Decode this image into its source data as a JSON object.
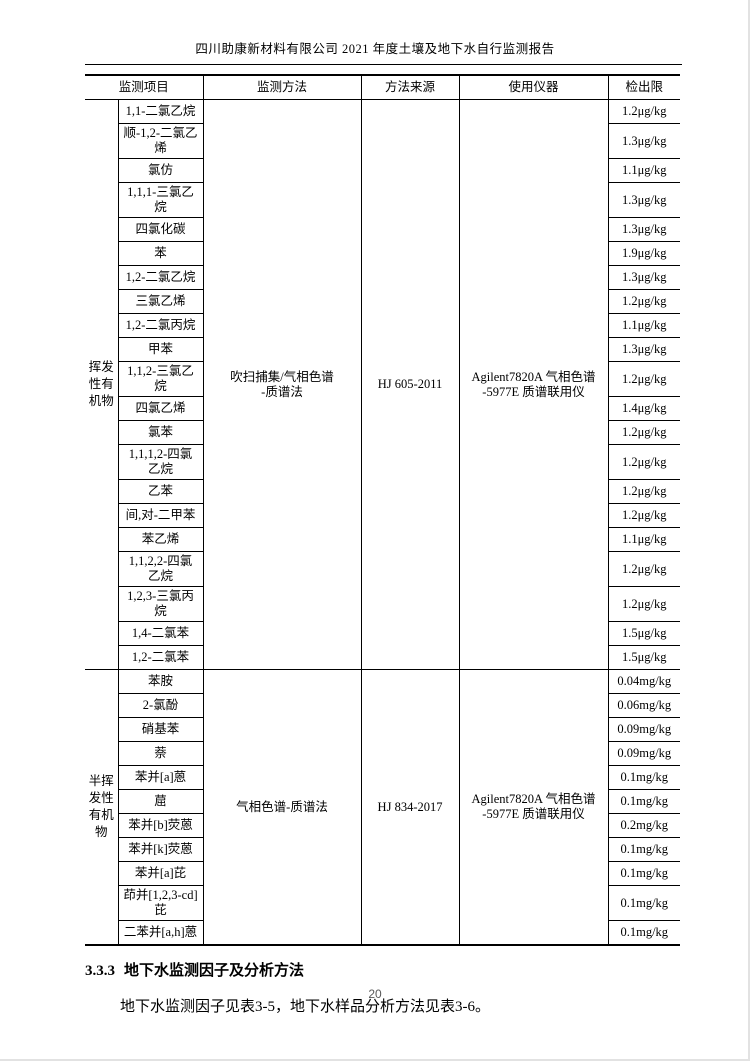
{
  "header": {
    "title": "四川助康新材料有限公司 2021 年度土壤及地下水自行监测报告"
  },
  "colors": {
    "text": "#000000",
    "table_lines": "#000000",
    "page_number": "#595959"
  },
  "table": {
    "headers": {
      "item": "监测项目",
      "method": "监测方法",
      "source": "方法来源",
      "instrument": "使用仪器",
      "limit": "检出限"
    },
    "groups": [
      {
        "category": "挥发\n性有\n机物",
        "category_full": "挥发性有机物",
        "method": "吹扫捕集/气相色谱\n-质谱法",
        "source": "HJ 605-2011",
        "instrument": "Agilent7820A 气相色谱\n-5977E 质谱联用仪",
        "rows": [
          {
            "item": "1,1-二氯乙烷",
            "limit": "1.2μg/kg"
          },
          {
            "item": "顺-1,2-二氯乙\n烯",
            "limit": "1.3μg/kg"
          },
          {
            "item": "氯仿",
            "limit": "1.1μg/kg"
          },
          {
            "item": "1,1,1-三氯乙\n烷",
            "limit": "1.3μg/kg"
          },
          {
            "item": "四氯化碳",
            "limit": "1.3μg/kg"
          },
          {
            "item": "苯",
            "limit": "1.9μg/kg"
          },
          {
            "item": "1,2-二氯乙烷",
            "limit": "1.3μg/kg"
          },
          {
            "item": "三氯乙烯",
            "limit": "1.2μg/kg"
          },
          {
            "item": "1,2-二氯丙烷",
            "limit": "1.1μg/kg"
          },
          {
            "item": "甲苯",
            "limit": "1.3μg/kg"
          },
          {
            "item": "1,1,2-三氯乙\n烷",
            "limit": "1.2μg/kg"
          },
          {
            "item": "四氯乙烯",
            "limit": "1.4μg/kg"
          },
          {
            "item": "氯苯",
            "limit": "1.2μg/kg"
          },
          {
            "item": "1,1,1,2-四氯\n乙烷",
            "limit": "1.2μg/kg"
          },
          {
            "item": "乙苯",
            "limit": "1.2μg/kg"
          },
          {
            "item": "间,对-二甲苯",
            "limit": "1.2μg/kg"
          },
          {
            "item": "苯乙烯",
            "limit": "1.1μg/kg"
          },
          {
            "item": "1,1,2,2-四氯\n乙烷",
            "limit": "1.2μg/kg"
          },
          {
            "item": "1,2,3-三氯丙\n烷",
            "limit": "1.2μg/kg"
          },
          {
            "item": "1,4-二氯苯",
            "limit": "1.5μg/kg"
          },
          {
            "item": "1,2-二氯苯",
            "limit": "1.5μg/kg"
          }
        ]
      },
      {
        "category": "半挥\n发性\n有机\n物",
        "category_full": "半挥发性有机物",
        "method": "气相色谱-质谱法",
        "source": "HJ 834-2017",
        "instrument": "Agilent7820A 气相色谱\n-5977E 质谱联用仪",
        "rows": [
          {
            "item": "苯胺",
            "limit": "0.04mg/kg"
          },
          {
            "item": "2-氯酚",
            "limit": "0.06mg/kg"
          },
          {
            "item": "硝基苯",
            "limit": "0.09mg/kg"
          },
          {
            "item": "萘",
            "limit": "0.09mg/kg"
          },
          {
            "item": "苯并[a]蒽",
            "limit": "0.1mg/kg"
          },
          {
            "item": "䓛",
            "limit": "0.1mg/kg"
          },
          {
            "item": "苯并[b]荧蒽",
            "limit": "0.2mg/kg"
          },
          {
            "item": "苯并[k]荧蒽",
            "limit": "0.1mg/kg"
          },
          {
            "item": "苯并[a]芘",
            "limit": "0.1mg/kg"
          },
          {
            "item": "茚并[1,2,3-cd]\n芘",
            "limit": "0.1mg/kg"
          },
          {
            "item": "二苯并[a,h]蒽",
            "limit": "0.1mg/kg"
          }
        ]
      }
    ]
  },
  "section": {
    "heading_number": "3.3.3",
    "heading_title": "地下水监测因子及分析方法",
    "paragraph": "地下水监测因子见表3-5，地下水样品分析方法见表3-6。"
  },
  "footer": {
    "page_number": "20"
  }
}
